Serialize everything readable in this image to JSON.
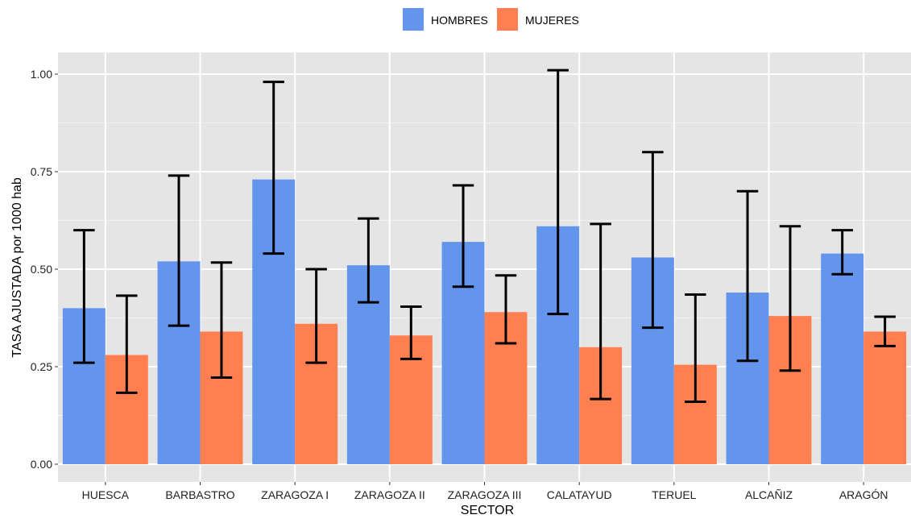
{
  "chart_data": {
    "type": "bar",
    "title": "",
    "xlabel": "SECTOR",
    "ylabel": "TASA AJUSTADA por 1000 hab",
    "ylim": [
      0,
      1.05
    ],
    "yticks": [
      0.0,
      0.25,
      0.5,
      0.75,
      1.0
    ],
    "ytick_labels": [
      "0.00",
      "0.25",
      "0.50",
      "0.75",
      "1.00"
    ],
    "grid": true,
    "legend_position": "top",
    "categories": [
      "HUESCA",
      "BARBASTRO",
      "ZARAGOZA I",
      "ZARAGOZA II",
      "ZARAGOZA III",
      "CALATAYUD",
      "TERUEL",
      "ALCAÑIZ",
      "ARAGÓN"
    ],
    "series": [
      {
        "name": "HOMBRES",
        "color": "#6495ED",
        "values": [
          0.4,
          0.52,
          0.73,
          0.51,
          0.57,
          0.61,
          0.53,
          0.44,
          0.54
        ],
        "lower": [
          0.26,
          0.355,
          0.54,
          0.415,
          0.455,
          0.385,
          0.35,
          0.265,
          0.487
        ],
        "upper": [
          0.6,
          0.74,
          0.98,
          0.63,
          0.715,
          1.01,
          0.8,
          0.7,
          0.6
        ]
      },
      {
        "name": "MUJERES",
        "color": "#FF7F50",
        "values": [
          0.28,
          0.34,
          0.36,
          0.33,
          0.39,
          0.3,
          0.255,
          0.38,
          0.34
        ],
        "lower": [
          0.183,
          0.222,
          0.26,
          0.27,
          0.31,
          0.167,
          0.16,
          0.24,
          0.303
        ],
        "upper": [
          0.432,
          0.517,
          0.5,
          0.404,
          0.484,
          0.616,
          0.435,
          0.61,
          0.378
        ]
      }
    ]
  }
}
